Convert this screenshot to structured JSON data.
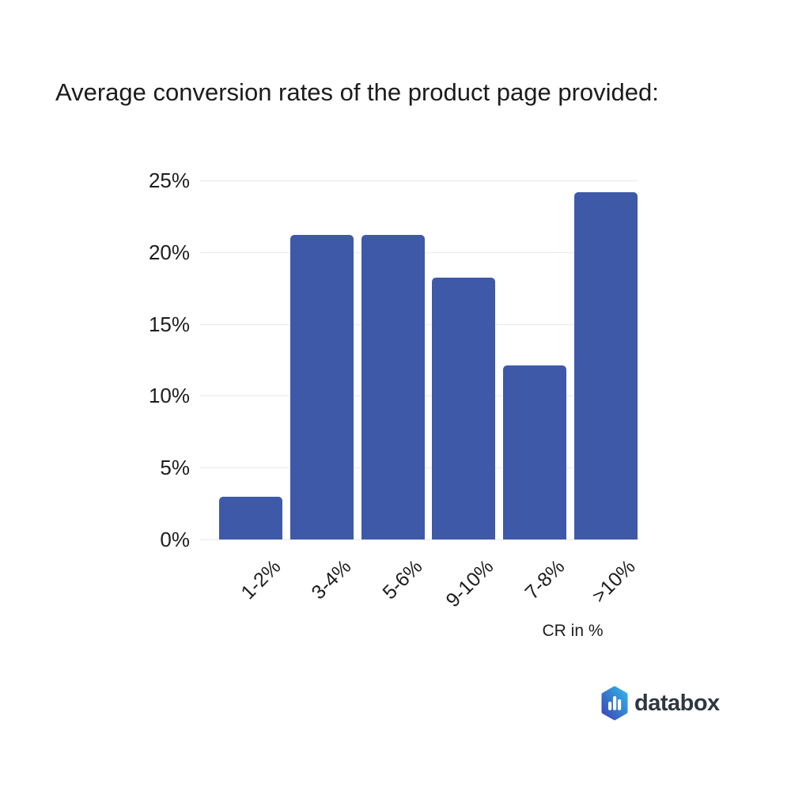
{
  "title": "Average conversion rates of the product page provided:",
  "chart_data": {
    "type": "bar",
    "title": "Average conversion rates of the product page provided:",
    "categories": [
      "1-2%",
      "3-4%",
      "5-6%",
      "9-10%",
      "7-8%",
      ">10%"
    ],
    "values": [
      3,
      21.2,
      21.2,
      18.2,
      12.1,
      24.2
    ],
    "xlabel": "CR in %",
    "ylabel": "",
    "ylim": [
      0,
      25
    ],
    "yticks": [
      "0%",
      "5%",
      "10%",
      "15%",
      "20%",
      "25%"
    ],
    "grid": true,
    "legend": "none",
    "bar_color": "#3e59a8",
    "gridline_color": "#e9e9e9",
    "label_color": "#1d1d1d"
  },
  "branding": {
    "logo_text": "databox",
    "logo_icon": "bar-chart-hexagon-icon",
    "logo_text_color": "#2e3642",
    "logo_gradient_start": "#3c45b5",
    "logo_gradient_end": "#30b5e9"
  }
}
